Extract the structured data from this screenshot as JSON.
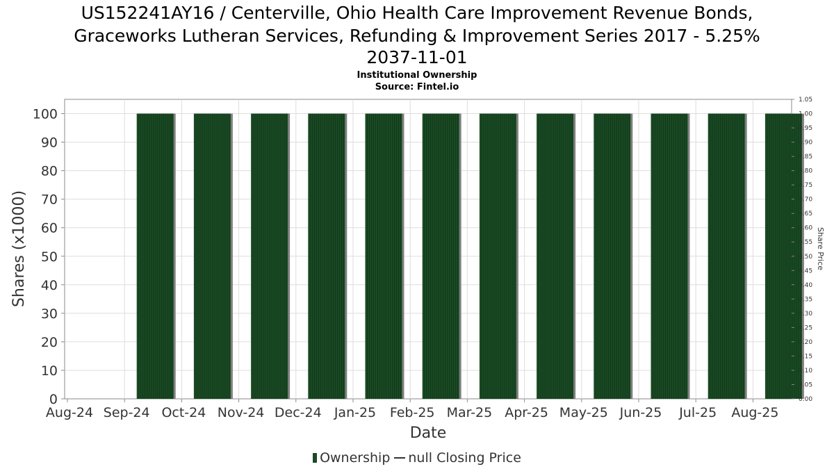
{
  "chart_data": {
    "type": "bar",
    "title_lines": [
      "US152241AY16 / Centerville, Ohio Health Care Improvement Revenue Bonds,",
      "Graceworks Lutheran Services, Refunding & Improvement Series 2017 - 5.25%",
      "2037-11-01"
    ],
    "subtitle_lines": [
      "Institutional Ownership",
      "Source: Fintel.io"
    ],
    "xlabel": "Date",
    "ylabel": "Shares (x1000)",
    "y2label": "Share Price",
    "ylim": [
      0,
      105
    ],
    "yticks": [
      0,
      10,
      20,
      30,
      40,
      50,
      60,
      70,
      80,
      90,
      100
    ],
    "y2lim": [
      0,
      1.05
    ],
    "y2ticks": [
      "0.00",
      "0.05",
      "0.10",
      "0.15",
      "0.20",
      "0.25",
      "0.30",
      "0.35",
      "0.40",
      "0.45",
      "0.50",
      "0.55",
      "0.60",
      "0.65",
      "0.70",
      "0.75",
      "0.80",
      "0.85",
      "0.90",
      "0.95",
      "1.00",
      "1.05"
    ],
    "categories": [
      "Aug-24",
      "Sep-24",
      "Oct-24",
      "Nov-24",
      "Dec-24",
      "Jan-25",
      "Feb-25",
      "Mar-25",
      "Apr-25",
      "May-25",
      "Jun-25",
      "Jul-25",
      "Aug-25"
    ],
    "series": [
      {
        "name": "Ownership",
        "values": [
          0,
          100,
          100,
          100,
          100,
          100,
          100,
          100,
          100,
          100,
          100,
          100,
          100
        ]
      }
    ],
    "legend": {
      "ownership": "Ownership",
      "price": "null Closing Price",
      "position": "bottom"
    },
    "grid": true,
    "colors": {
      "bar": "#1a4a24",
      "bar_shadow": "#808080",
      "grid": "#dddddd",
      "axis": "#888888"
    }
  }
}
